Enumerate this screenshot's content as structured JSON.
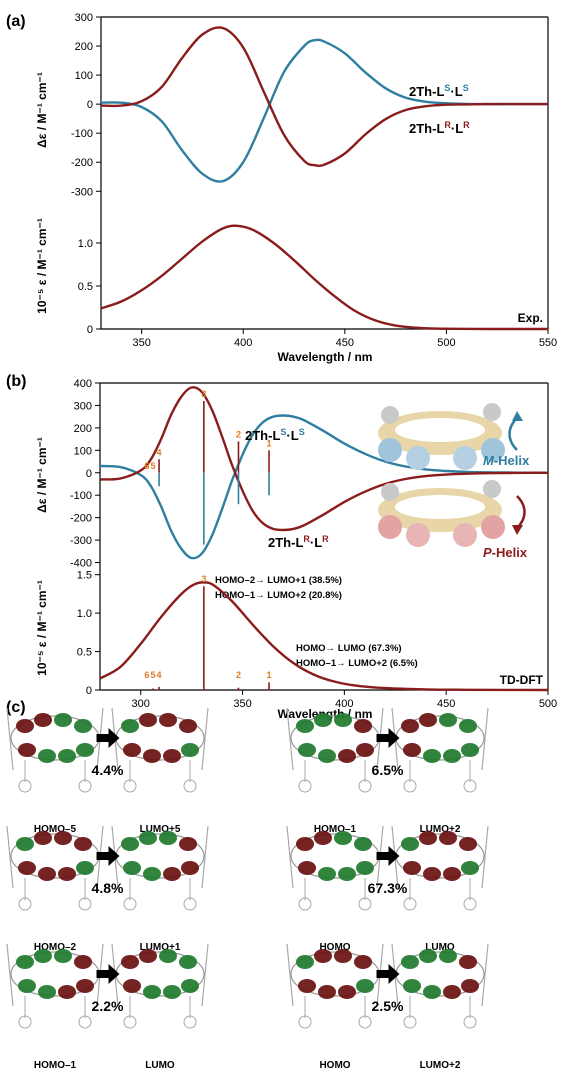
{
  "panels": {
    "a": "(a)",
    "b": "(b)",
    "c": "(c)"
  },
  "colors": {
    "blue": "#2e7fa0",
    "red": "#8a1c1c",
    "orange": "#e07b24",
    "green": "#1f7a2c",
    "maroon": "#6a1010"
  },
  "chart_data": [
    {
      "type": "line",
      "panel": "a-top",
      "ylabel": "Δε / M⁻¹ cm⁻¹",
      "xlim": [
        330,
        550
      ],
      "ylim": [
        -330,
        300
      ],
      "yticks": [
        -300,
        -200,
        -100,
        0,
        100,
        200,
        300
      ],
      "series": [
        {
          "name": "2Th-Lˢ·Lˢ",
          "color": "#2e7fa0",
          "x": [
            330,
            340,
            350,
            360,
            370,
            380,
            390,
            400,
            410,
            420,
            430,
            435,
            440,
            450,
            460,
            470,
            480,
            490,
            500,
            510,
            520,
            530,
            540,
            550
          ],
          "y": [
            5,
            5,
            -10,
            -60,
            -160,
            -240,
            -265,
            -200,
            -50,
            110,
            200,
            220,
            215,
            175,
            110,
            55,
            22,
            8,
            3,
            1,
            0,
            0,
            0,
            0
          ]
        },
        {
          "name": "2Th-Lᴿ·Lᴿ",
          "color": "#8a1c1c",
          "x": [
            330,
            340,
            350,
            360,
            370,
            380,
            390,
            400,
            410,
            420,
            430,
            435,
            440,
            450,
            460,
            470,
            480,
            490,
            500,
            510,
            520,
            530,
            540,
            550
          ],
          "y": [
            -5,
            -5,
            10,
            60,
            160,
            240,
            262,
            195,
            45,
            -105,
            -195,
            -210,
            -208,
            -170,
            -105,
            -52,
            -20,
            -7,
            -2,
            -1,
            0,
            0,
            0,
            0
          ]
        }
      ],
      "legend_labels": {
        "s_main": "2Th-L",
        "s_sup1": "S",
        "s_dot": "·L",
        "s_sup2": "S",
        "r_main": "2Th-L",
        "r_sup1": "R",
        "r_dot": "·L",
        "r_sup2": "R"
      }
    },
    {
      "type": "line",
      "panel": "a-bottom",
      "ylabel": "10⁻⁵ ε / M⁻¹ cm⁻¹",
      "xlabel": "Wavelength / nm",
      "xlim": [
        330,
        550
      ],
      "ylim": [
        0,
        1.5
      ],
      "yticks": [
        0,
        0.5,
        1.0
      ],
      "xticks": [
        350,
        400,
        450,
        500,
        550
      ],
      "label": "Exp.",
      "series": [
        {
          "color": "#8a1c1c",
          "x": [
            330,
            340,
            350,
            360,
            370,
            380,
            390,
            397,
            405,
            415,
            425,
            435,
            445,
            455,
            465,
            475,
            485,
            495,
            505,
            520,
            535,
            550
          ],
          "y": [
            0.24,
            0.32,
            0.45,
            0.62,
            0.82,
            1.02,
            1.17,
            1.2,
            1.15,
            1.0,
            0.8,
            0.58,
            0.38,
            0.21,
            0.1,
            0.04,
            0.015,
            0.005,
            0.002,
            0.0,
            0.0,
            0.0
          ]
        }
      ]
    },
    {
      "type": "line",
      "panel": "b-top",
      "ylabel": "Δε / M⁻¹ cm⁻¹",
      "xlim": [
        280,
        500
      ],
      "ylim": [
        -420,
        400
      ],
      "yticks": [
        -400,
        -300,
        -200,
        -100,
        0,
        100,
        200,
        300,
        400
      ],
      "series": [
        {
          "name": "2Th-Lˢ·Lˢ",
          "color": "#2e7fa0",
          "x": [
            280,
            290,
            300,
            305,
            310,
            315,
            320,
            325,
            330,
            335,
            340,
            345,
            350,
            355,
            360,
            365,
            370,
            375,
            380,
            390,
            400,
            410,
            420,
            430,
            440,
            450,
            460,
            470,
            480,
            490,
            500
          ],
          "y": [
            30,
            25,
            -10,
            -60,
            -150,
            -260,
            -340,
            -380,
            -360,
            -280,
            -160,
            -30,
            80,
            170,
            225,
            250,
            255,
            250,
            235,
            185,
            130,
            85,
            50,
            28,
            15,
            8,
            4,
            2,
            1,
            0,
            0
          ]
        },
        {
          "name": "2Th-Lᴿ·Lᴿ",
          "color": "#8a1c1c",
          "x": [
            280,
            290,
            300,
            305,
            310,
            315,
            320,
            325,
            330,
            335,
            340,
            345,
            350,
            355,
            360,
            365,
            370,
            375,
            380,
            390,
            400,
            410,
            420,
            430,
            440,
            450,
            460,
            470,
            480,
            490,
            500
          ],
          "y": [
            -30,
            -25,
            10,
            60,
            150,
            260,
            340,
            380,
            360,
            280,
            160,
            30,
            -80,
            -170,
            -225,
            -250,
            -255,
            -250,
            -235,
            -185,
            -130,
            -85,
            -50,
            -28,
            -15,
            -8,
            -4,
            -2,
            -1,
            0,
            0
          ]
        }
      ],
      "sticks": [
        {
          "label": "1",
          "x": 363,
          "y": 100
        },
        {
          "label": "2",
          "x": 348,
          "y": 140
        },
        {
          "label": "3",
          "x": 331,
          "y": 320
        },
        {
          "label": "4",
          "x": 309,
          "y": 60
        },
        {
          "label": "5",
          "x": 306,
          "y": 0
        },
        {
          "label": "6",
          "x": 303,
          "y": 0
        }
      ],
      "helix_labels": {
        "m_prefix": "M",
        "m_suffix": "-Helix",
        "p_prefix": "P",
        "p_suffix": "-Helix"
      }
    },
    {
      "type": "line",
      "panel": "b-bottom",
      "ylabel": "10⁻⁵ ε / M⁻¹ cm⁻¹",
      "xlabel": "Wavelength / nm",
      "xlim": [
        280,
        500
      ],
      "ylim": [
        0,
        1.6
      ],
      "yticks": [
        0,
        0.5,
        1.0,
        1.5
      ],
      "xticks": [
        300,
        350,
        400,
        450,
        500
      ],
      "label": "TD-DFT",
      "series": [
        {
          "color": "#8a1c1c",
          "x": [
            280,
            290,
            300,
            310,
            320,
            326,
            331,
            336,
            345,
            355,
            365,
            375,
            385,
            395,
            405,
            420,
            440,
            460,
            480,
            500
          ],
          "y": [
            0.15,
            0.3,
            0.6,
            0.95,
            1.25,
            1.37,
            1.4,
            1.36,
            1.15,
            0.85,
            0.57,
            0.35,
            0.2,
            0.11,
            0.06,
            0.025,
            0.008,
            0.003,
            0.001,
            0.0
          ]
        }
      ],
      "sticks": [
        {
          "label": "1",
          "x": 363,
          "y": 0.1
        },
        {
          "label": "2",
          "x": 348,
          "y": 0.03
        },
        {
          "label": "3",
          "x": 331,
          "y": 1.35
        },
        {
          "label": "4",
          "x": 309,
          "y": 0.04
        },
        {
          "label": "5",
          "x": 306,
          "y": 0.02
        },
        {
          "label": "6",
          "x": 303,
          "y": 0.01
        }
      ],
      "annotations": {
        "t3_line1": "HOMO–2→ LUMO+1 (38.5%)",
        "t3_line2": "HOMO–1→ LUMO+2 (20.8%)",
        "t1_line1": "HOMO→ LUMO (67.3%)",
        "t1_line2": "HOMO–1→ LUMO+2 (6.5%)"
      }
    }
  ],
  "orbitals": {
    "rows": [
      [
        {
          "from": "HOMO–5",
          "to": "LUMO+5",
          "pct": "4.4%"
        },
        {
          "from": "HOMO–1",
          "to": "LUMO+2",
          "pct": "6.5%"
        }
      ],
      [
        {
          "from": "HOMO–2",
          "to": "LUMO+1",
          "pct": "4.8%"
        },
        {
          "from": "HOMO",
          "to": "LUMO",
          "pct": "67.3%"
        }
      ],
      [
        {
          "from": "HOMO–1",
          "to": "LUMO",
          "pct": "2.2%"
        },
        {
          "from": "HOMO",
          "to": "LUMO+2",
          "pct": "2.5%"
        }
      ]
    ]
  }
}
